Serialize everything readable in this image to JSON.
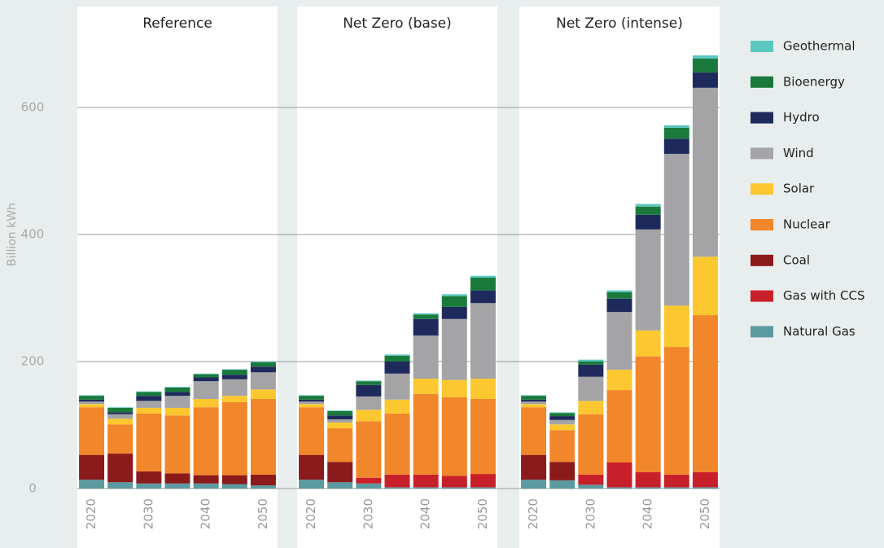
{
  "chart_data": {
    "type": "bar",
    "stacked": true,
    "ylabel": "Billion kWh",
    "ylim": [
      0,
      700
    ],
    "yticks": [
      0,
      200,
      400,
      600
    ],
    "grid": true,
    "legend": "right",
    "categories": [
      "2020",
      null,
      "2030",
      null,
      "2040",
      null,
      "2050"
    ],
    "series": [
      {
        "name": "Natural Gas",
        "color": "#5b9aa0"
      },
      {
        "name": "Gas with CCS",
        "color": "#c8202a"
      },
      {
        "name": "Coal",
        "color": "#8b1a1a"
      },
      {
        "name": "Nuclear",
        "color": "#f2862a"
      },
      {
        "name": "Solar",
        "color": "#fdc82f"
      },
      {
        "name": "Wind",
        "color": "#a4a4a6"
      },
      {
        "name": "Hydro",
        "color": "#1f2a5c"
      },
      {
        "name": "Bioenergy",
        "color": "#1a7a3c"
      },
      {
        "name": "Geothermal",
        "color": "#5bc8c0"
      }
    ],
    "panels": [
      {
        "title": "Reference",
        "series": [
          {
            "values": [
              14,
              10,
              8,
              8,
              8,
              7,
              5
            ]
          },
          {
            "values": [
              0,
              0,
              0,
              0,
              0,
              0,
              0
            ]
          },
          {
            "values": [
              39,
              45,
              19,
              16,
              13,
              14,
              17
            ]
          },
          {
            "values": [
              75,
              46,
              91,
              91,
              107,
              115,
              119
            ]
          },
          {
            "values": [
              5,
              9,
              9,
              12,
              13,
              10,
              15
            ]
          },
          {
            "values": [
              4,
              7,
              11,
              19,
              28,
              26,
              27
            ]
          },
          {
            "values": [
              3,
              3,
              8,
              6,
              6,
              7,
              9
            ]
          },
          {
            "values": [
              6,
              7,
              6,
              7,
              5,
              8,
              7
            ]
          },
          {
            "values": [
              1,
              1,
              1,
              1,
              1,
              1,
              1
            ]
          }
        ]
      },
      {
        "title": "Net Zero (base)",
        "series": [
          {
            "values": [
              14,
              10,
              8,
              2,
              2,
              2,
              2
            ]
          },
          {
            "values": [
              0,
              0,
              9,
              20,
              20,
              18,
              21
            ]
          },
          {
            "values": [
              39,
              32,
              0,
              0,
              0,
              0,
              0
            ]
          },
          {
            "values": [
              75,
              53,
              89,
              96,
              127,
              124,
              118
            ]
          },
          {
            "values": [
              5,
              9,
              18,
              22,
              24,
              27,
              32
            ]
          },
          {
            "values": [
              4,
              5,
              21,
              41,
              68,
              96,
              119
            ]
          },
          {
            "values": [
              3,
              6,
              18,
              19,
              26,
              19,
              20
            ]
          },
          {
            "values": [
              6,
              7,
              6,
              9,
              7,
              17,
              20
            ]
          },
          {
            "values": [
              1,
              1,
              1,
              2,
              2,
              3,
              3
            ]
          }
        ]
      },
      {
        "title": "Net Zero (intense)",
        "series": [
          {
            "values": [
              14,
              13,
              6,
              2,
              2,
              2,
              2
            ]
          },
          {
            "values": [
              0,
              0,
              16,
              39,
              24,
              20,
              24
            ]
          },
          {
            "values": [
              39,
              29,
              0,
              0,
              0,
              0,
              0
            ]
          },
          {
            "values": [
              75,
              50,
              95,
              114,
              182,
              201,
              247
            ]
          },
          {
            "values": [
              5,
              9,
              21,
              32,
              41,
              65,
              92
            ]
          },
          {
            "values": [
              4,
              7,
              38,
              91,
              159,
              239,
              266
            ]
          },
          {
            "values": [
              3,
              6,
              19,
              21,
              23,
              24,
              24
            ]
          },
          {
            "values": [
              6,
              5,
              5,
              10,
              13,
              17,
              22
            ]
          },
          {
            "values": [
              1,
              1,
              3,
              3,
              4,
              4,
              5
            ]
          }
        ]
      }
    ]
  }
}
